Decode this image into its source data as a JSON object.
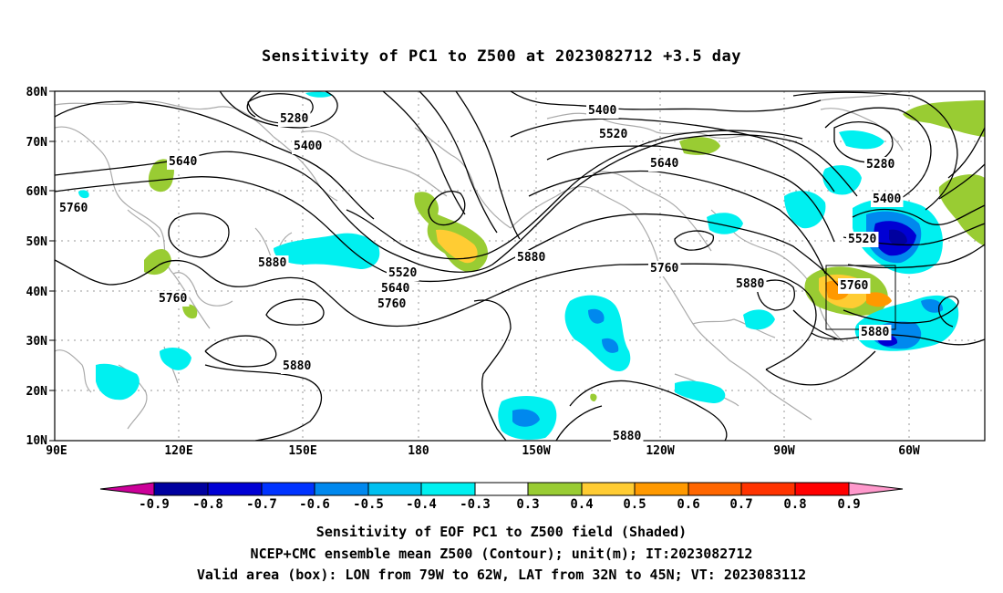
{
  "title": "Sensitivity of PC1 to Z500 at 2023082712 +3.5 day",
  "map": {
    "lon_labels": [
      "90E",
      "120E",
      "150E",
      "180",
      "150W",
      "120W",
      "90W",
      "60W"
    ],
    "lat_labels": [
      "80N",
      "70N",
      "60N",
      "50N",
      "40N",
      "30N",
      "20N",
      "10N"
    ],
    "contour_labels": [
      {
        "text": "5280"
      },
      {
        "text": "5400"
      },
      {
        "text": "5640"
      },
      {
        "text": "5760"
      },
      {
        "text": "5880"
      },
      {
        "text": "5760"
      },
      {
        "text": "5520"
      },
      {
        "text": "5640"
      },
      {
        "text": "5760"
      },
      {
        "text": "5880"
      },
      {
        "text": "5400"
      },
      {
        "text": "5520"
      },
      {
        "text": "5640"
      },
      {
        "text": "5880"
      },
      {
        "text": "5760"
      },
      {
        "text": "5880"
      },
      {
        "text": "5280"
      },
      {
        "text": "5400"
      },
      {
        "text": "5520"
      },
      {
        "text": "5760"
      },
      {
        "text": "5880"
      },
      {
        "text": "5880"
      }
    ],
    "valid_area_box": {
      "lon": [
        "79W",
        "62W"
      ],
      "lat": [
        "32N",
        "45N"
      ]
    }
  },
  "colorbar": {
    "labels": [
      "-0.9",
      "-0.8",
      "-0.7",
      "-0.6",
      "-0.5",
      "-0.4",
      "-0.3",
      "0.3",
      "0.4",
      "0.5",
      "0.6",
      "0.7",
      "0.8",
      "0.9"
    ],
    "colors": [
      "#cc0099",
      "#00009f",
      "#0000d4",
      "#0033ff",
      "#0088ee",
      "#00c0f0",
      "#00f0f0",
      "#ffffff",
      "#99cc33",
      "#ffcc33",
      "#ff9900",
      "#ff6600",
      "#ff3300",
      "#ff0000",
      "#ff99cc"
    ]
  },
  "captions": {
    "line1": "Sensitivity of EOF PC1 to Z500 field (Shaded)",
    "line2": "NCEP+CMC ensemble mean Z500 (Contour); unit(m); IT:2023082712",
    "line3": "Valid area (box): LON from 79W to 62W, LAT from 32N to 45N; VT: 2023083112"
  }
}
